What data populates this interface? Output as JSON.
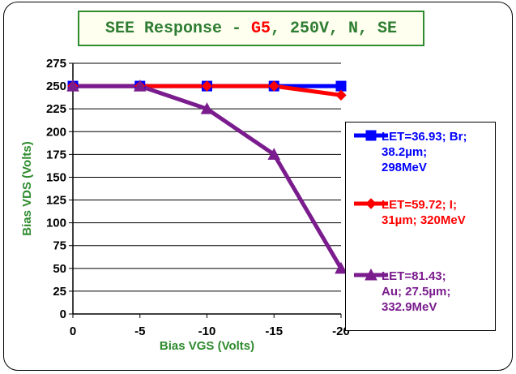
{
  "title": {
    "prefix": "SEE Response - ",
    "highlight": "G5",
    "suffix": ", 250V, N, SE"
  },
  "chart_data": {
    "type": "line",
    "xlabel": "Bias VGS (Volts)",
    "ylabel": "Bias VDS (Volts)",
    "x": [
      0,
      -5,
      -10,
      -15,
      -20
    ],
    "x_ticks": [
      "0",
      "-5",
      "-10",
      "-15",
      "-20"
    ],
    "y_ticks": [
      "0",
      "25",
      "50",
      "75",
      "100",
      "125",
      "150",
      "175",
      "200",
      "225",
      "250",
      "275"
    ],
    "ylim": [
      0,
      275
    ],
    "grid": "horizontal",
    "legend_position": "right",
    "series": [
      {
        "name": "LET=36.93; Br;\n38.2µm;\n298MeV",
        "values": [
          250,
          250,
          250,
          250,
          250
        ],
        "color": "#0000ff",
        "marker": "square"
      },
      {
        "name": "LET=59.72; I;\n31µm; 320MeV",
        "values": [
          250,
          250,
          250,
          250,
          240
        ],
        "color": "#ff0000",
        "marker": "diamond"
      },
      {
        "name": "LET=81.43;\nAu; 27.5µm;\n332.9MeV",
        "values": [
          250,
          250,
          225,
          175,
          50
        ],
        "color": "#7b1c8e",
        "marker": "triangle"
      }
    ]
  }
}
